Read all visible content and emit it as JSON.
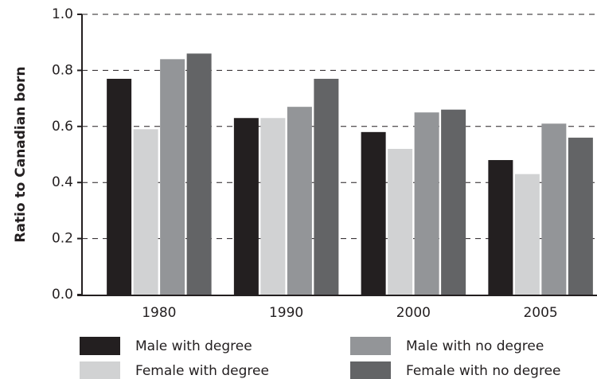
{
  "chart_data": {
    "type": "bar",
    "y_label": "Ratio to Canadian born",
    "categories": [
      "1980",
      "1990",
      "2000",
      "2005"
    ],
    "series": [
      {
        "name": "Male with degree",
        "color": "#231f20",
        "values": [
          0.77,
          0.63,
          0.58,
          0.48
        ]
      },
      {
        "name": "Female with degree",
        "color": "#d1d2d3",
        "values": [
          0.59,
          0.63,
          0.52,
          0.43
        ]
      },
      {
        "name": "Male with no degree",
        "color": "#939598",
        "values": [
          0.84,
          0.67,
          0.65,
          0.61
        ]
      },
      {
        "name": "Female with no degree",
        "color": "#636466",
        "values": [
          0.86,
          0.77,
          0.66,
          0.56
        ]
      }
    ],
    "ylim": [
      0,
      1
    ],
    "yticks": [
      {
        "value": 0,
        "label": "0.0"
      },
      0.2,
      0.4,
      0.6,
      0.8,
      {
        "value": 1,
        "label": "1.0"
      }
    ],
    "grid": true
  }
}
